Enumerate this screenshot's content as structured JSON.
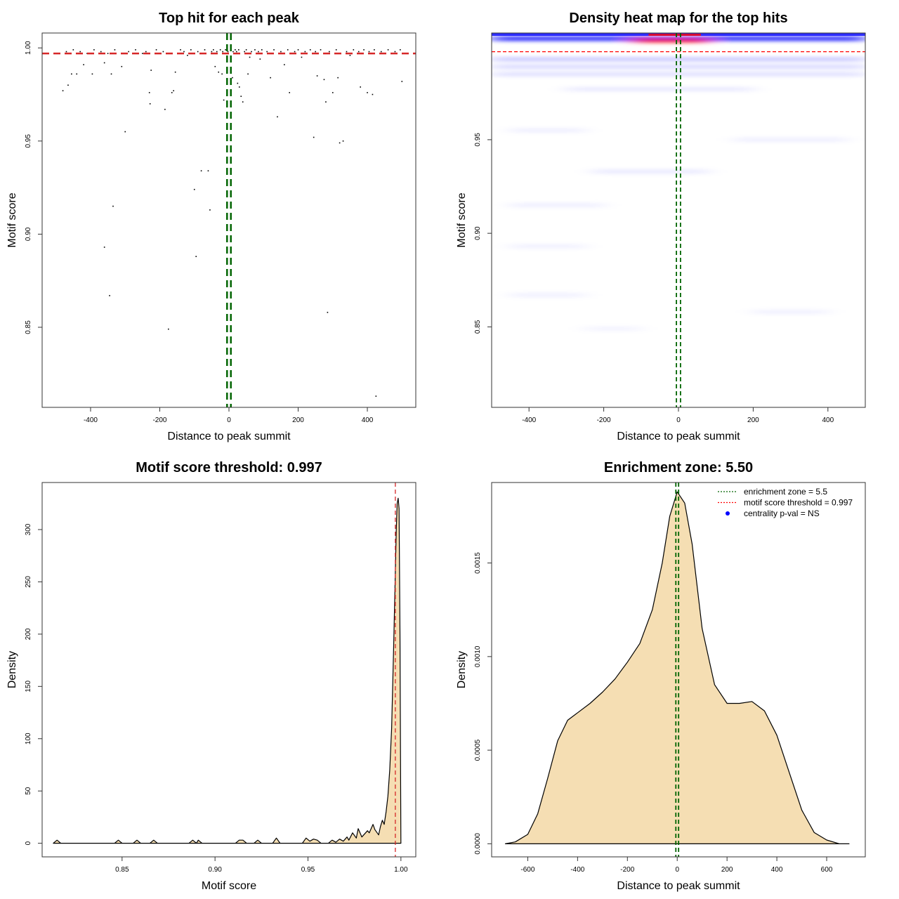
{
  "chart_data": [
    {
      "type": "scatter",
      "title": "Top hit for each peak",
      "xlabel": "Distance to peak summit",
      "ylabel": "Motif score",
      "xlim": [
        -540,
        540
      ],
      "ylim": [
        0.807,
        1.008
      ],
      "x_ticks": [
        -400,
        -200,
        0,
        200,
        400
      ],
      "x_tick_labels": [
        "-400",
        "-200",
        "0",
        "200",
        "400"
      ],
      "y_ticks": [
        0.85,
        0.9,
        0.95,
        1.0
      ],
      "y_tick_labels": [
        "0.85",
        "0.90",
        "0.95",
        "1.00"
      ],
      "threshold": 0.997,
      "enrichment_zone": [
        -5.5,
        5.5
      ],
      "points": [
        [
          -480,
          0.977
        ],
        [
          -465,
          0.98
        ],
        [
          -455,
          0.986
        ],
        [
          -440,
          0.986
        ],
        [
          -420,
          0.991
        ],
        [
          -395,
          0.986
        ],
        [
          -360,
          0.992
        ],
        [
          -340,
          0.986
        ],
        [
          -310,
          0.99
        ],
        [
          -300,
          0.955
        ],
        [
          -335,
          0.915
        ],
        [
          -360,
          0.893
        ],
        [
          -345,
          0.867
        ],
        [
          -230,
          0.976
        ],
        [
          -228,
          0.97
        ],
        [
          -225,
          0.988
        ],
        [
          -185,
          0.967
        ],
        [
          -165,
          0.976
        ],
        [
          -160,
          0.977
        ],
        [
          -155,
          0.987
        ],
        [
          -175,
          0.849
        ],
        [
          -100,
          0.924
        ],
        [
          -80,
          0.934
        ],
        [
          -60,
          0.934
        ],
        [
          -55,
          0.913
        ],
        [
          -95,
          0.888
        ],
        [
          -40,
          0.99
        ],
        [
          -30,
          0.987
        ],
        [
          -20,
          0.986
        ],
        [
          -15,
          0.972
        ],
        [
          -5,
          0.975
        ],
        [
          10,
          0.984
        ],
        [
          25,
          0.981
        ],
        [
          30,
          0.979
        ],
        [
          35,
          0.974
        ],
        [
          40,
          0.971
        ],
        [
          55,
          0.986
        ],
        [
          120,
          0.984
        ],
        [
          140,
          0.963
        ],
        [
          160,
          0.991
        ],
        [
          175,
          0.976
        ],
        [
          245,
          0.952
        ],
        [
          255,
          0.985
        ],
        [
          275,
          0.983
        ],
        [
          280,
          0.971
        ],
        [
          285,
          0.858
        ],
        [
          300,
          0.976
        ],
        [
          315,
          0.984
        ],
        [
          320,
          0.949
        ],
        [
          330,
          0.95
        ],
        [
          380,
          0.979
        ],
        [
          400,
          0.976
        ],
        [
          415,
          0.975
        ],
        [
          425,
          0.813
        ],
        [
          500,
          0.982
        ],
        [
          -250,
          0.997
        ],
        [
          -120,
          0.996
        ],
        [
          60,
          0.995
        ],
        [
          90,
          0.994
        ],
        [
          210,
          0.995
        ],
        [
          350,
          0.996
        ],
        [
          -470,
          0.998
        ],
        [
          -450,
          0.999
        ],
        [
          -430,
          0.998
        ],
        [
          -410,
          0.997
        ],
        [
          -390,
          0.999
        ],
        [
          -370,
          0.998
        ],
        [
          -350,
          0.997
        ],
        [
          -330,
          0.999
        ],
        [
          -290,
          0.998
        ],
        [
          -270,
          0.999
        ],
        [
          -240,
          0.998
        ],
        [
          -210,
          0.999
        ],
        [
          -190,
          0.998
        ],
        [
          -170,
          0.997
        ],
        [
          -140,
          0.999
        ],
        [
          -130,
          0.998
        ],
        [
          -110,
          0.999
        ],
        [
          -90,
          0.998
        ],
        [
          -70,
          0.999
        ],
        [
          -50,
          0.998
        ],
        [
          -45,
          0.999
        ],
        [
          -35,
          0.998
        ],
        [
          -25,
          0.999
        ],
        [
          -18,
          0.998
        ],
        [
          -10,
          0.999
        ],
        [
          -3,
          0.998
        ],
        [
          5,
          0.999
        ],
        [
          12,
          0.998
        ],
        [
          18,
          0.999
        ],
        [
          22,
          0.998
        ],
        [
          28,
          0.999
        ],
        [
          45,
          0.998
        ],
        [
          50,
          0.999
        ],
        [
          65,
          0.998
        ],
        [
          75,
          0.999
        ],
        [
          85,
          0.998
        ],
        [
          95,
          0.999
        ],
        [
          110,
          0.998
        ],
        [
          130,
          0.999
        ],
        [
          150,
          0.998
        ],
        [
          170,
          0.999
        ],
        [
          190,
          0.998
        ],
        [
          200,
          0.999
        ],
        [
          220,
          0.998
        ],
        [
          235,
          0.999
        ],
        [
          250,
          0.998
        ],
        [
          265,
          0.999
        ],
        [
          290,
          0.998
        ],
        [
          310,
          0.999
        ],
        [
          340,
          0.998
        ],
        [
          360,
          0.999
        ],
        [
          375,
          0.998
        ],
        [
          390,
          0.999
        ],
        [
          405,
          0.998
        ],
        [
          420,
          0.999
        ],
        [
          440,
          0.998
        ],
        [
          460,
          0.999
        ],
        [
          480,
          0.998
        ],
        [
          495,
          0.999
        ]
      ]
    },
    {
      "type": "heatmap",
      "title": "Density heat map for the top hits",
      "xlabel": "Distance to peak summit",
      "ylabel": "Motif score",
      "xlim": [
        -500,
        500
      ],
      "ylim": [
        0.807,
        1.007
      ],
      "x_ticks": [
        -400,
        -200,
        0,
        200,
        400
      ],
      "x_tick_labels": [
        "-400",
        "-200",
        "0",
        "200",
        "400"
      ],
      "y_ticks": [
        0.85,
        0.9,
        0.95
      ],
      "y_tick_labels": [
        "0.85",
        "0.90",
        "0.95"
      ],
      "threshold": 0.997,
      "enrichment_zone": [
        -5.5,
        5.5
      ],
      "colors": {
        "low": "#ffffff",
        "mid": "#0000ff",
        "high": "#ff0000"
      },
      "density_bands": [
        {
          "x": [
            -500,
            500
          ],
          "y": 1.004,
          "level": 1.0
        },
        {
          "x": [
            -120,
            80
          ],
          "y": 1.003,
          "level": 1.0
        },
        {
          "x": [
            -500,
            500
          ],
          "y": 0.993,
          "level": 0.25
        },
        {
          "x": [
            -500,
            500
          ],
          "y": 0.989,
          "level": 0.18
        },
        {
          "x": [
            -500,
            500
          ],
          "y": 0.985,
          "level": 0.15
        },
        {
          "x": [
            -300,
            200
          ],
          "y": 0.977,
          "level": 0.1
        },
        {
          "x": [
            -450,
            -250
          ],
          "y": 0.955,
          "level": 0.08
        },
        {
          "x": [
            150,
            450
          ],
          "y": 0.95,
          "level": 0.08
        },
        {
          "x": [
            -230,
            80
          ],
          "y": 0.933,
          "level": 0.1
        },
        {
          "x": [
            -450,
            -200
          ],
          "y": 0.915,
          "level": 0.08
        },
        {
          "x": [
            -450,
            -250
          ],
          "y": 0.893,
          "level": 0.07
        },
        {
          "x": [
            -450,
            -250
          ],
          "y": 0.867,
          "level": 0.07
        },
        {
          "x": [
            200,
            400
          ],
          "y": 0.858,
          "level": 0.07
        },
        {
          "x": [
            -250,
            -100
          ],
          "y": 0.849,
          "level": 0.06
        }
      ]
    },
    {
      "type": "area",
      "title": "Motif score threshold: 0.997",
      "xlabel": "Motif score",
      "ylabel": "Density",
      "xlim": [
        0.807,
        1.008
      ],
      "ylim": [
        -13,
        345
      ],
      "x_ticks": [
        0.85,
        0.9,
        0.95,
        1.0
      ],
      "x_tick_labels": [
        "0.85",
        "0.90",
        "0.95",
        "1.00"
      ],
      "y_ticks": [
        0,
        50,
        100,
        150,
        200,
        250,
        300
      ],
      "y_tick_labels": [
        "0",
        "50",
        "100",
        "150",
        "200",
        "250",
        "300"
      ],
      "threshold": 0.997,
      "x": [
        0.813,
        0.815,
        0.817,
        0.846,
        0.848,
        0.85,
        0.856,
        0.858,
        0.86,
        0.865,
        0.867,
        0.869,
        0.886,
        0.888,
        0.89,
        0.891,
        0.893,
        0.895,
        0.911,
        0.913,
        0.915,
        0.917,
        0.921,
        0.923,
        0.925,
        0.931,
        0.933,
        0.935,
        0.947,
        0.949,
        0.951,
        0.953,
        0.955,
        0.957,
        0.961,
        0.963,
        0.965,
        0.967,
        0.969,
        0.971,
        0.972,
        0.974,
        0.976,
        0.977,
        0.979,
        0.98,
        0.982,
        0.983,
        0.985,
        0.986,
        0.988,
        0.989,
        0.99,
        0.991,
        0.992,
        0.993,
        0.994,
        0.995,
        0.996,
        0.997,
        0.9975,
        0.998,
        0.9985,
        0.999,
        0.9995,
        1.0
      ],
      "y": [
        0,
        3,
        0,
        0,
        3,
        0,
        0,
        3,
        0,
        0,
        3,
        0,
        0,
        3,
        0,
        3,
        0,
        0,
        0,
        3,
        3,
        0,
        0,
        3,
        0,
        0,
        5,
        0,
        0,
        5,
        2,
        4,
        3,
        0,
        0,
        3,
        1,
        4,
        2,
        6,
        3,
        10,
        5,
        14,
        6,
        8,
        12,
        10,
        18,
        13,
        8,
        16,
        22,
        18,
        30,
        45,
        70,
        110,
        180,
        260,
        300,
        325,
        330,
        320,
        200,
        0
      ]
    },
    {
      "type": "area",
      "title": "Enrichment zone: 5.50",
      "xlabel": "Distance to peak summit",
      "ylabel": "Density",
      "xlim": [
        -745,
        755
      ],
      "ylim": [
        -7e-05,
        0.00193
      ],
      "x_ticks": [
        -600,
        -400,
        -200,
        0,
        200,
        400,
        600
      ],
      "x_tick_labels": [
        "-600",
        "-400",
        "-200",
        "0",
        "200",
        "400",
        "600"
      ],
      "y_ticks": [
        0,
        0.0005,
        0.001,
        0.0015
      ],
      "y_tick_labels": [
        "0.0000",
        "0.0005",
        "0.0010",
        "0.0015"
      ],
      "enrichment_zone": [
        -5.5,
        5.5
      ],
      "x": [
        -690,
        -650,
        -600,
        -560,
        -520,
        -480,
        -440,
        -400,
        -350,
        -300,
        -250,
        -200,
        -150,
        -100,
        -60,
        -30,
        0,
        30,
        60,
        100,
        150,
        200,
        250,
        300,
        350,
        400,
        450,
        500,
        550,
        600,
        650,
        690
      ],
      "y": [
        0,
        1e-05,
        5e-05,
        0.00016,
        0.00035,
        0.00055,
        0.00066,
        0.0007,
        0.00075,
        0.00081,
        0.00088,
        0.00097,
        0.00107,
        0.00125,
        0.0015,
        0.00175,
        0.00188,
        0.00182,
        0.0016,
        0.00115,
        0.00085,
        0.00075,
        0.00075,
        0.00076,
        0.00071,
        0.00058,
        0.00038,
        0.00018,
        6e-05,
        2e-05,
        0.0,
        0
      ],
      "legend": [
        {
          "label": "enrichment zone = 5.5",
          "style": "dotted-line",
          "color": "#006400"
        },
        {
          "label": "motif score threshold = 0.997",
          "style": "dotted-line",
          "color": "#ff0000"
        },
        {
          "label": "centrality p-val = NS",
          "style": "dot",
          "color": "#0000ff"
        }
      ],
      "legend_position": "top-right"
    }
  ],
  "colors": {
    "fill": "#f5deb3",
    "threshold_line": "#ff0000",
    "zone_line": "#006400",
    "points": "#000000"
  }
}
